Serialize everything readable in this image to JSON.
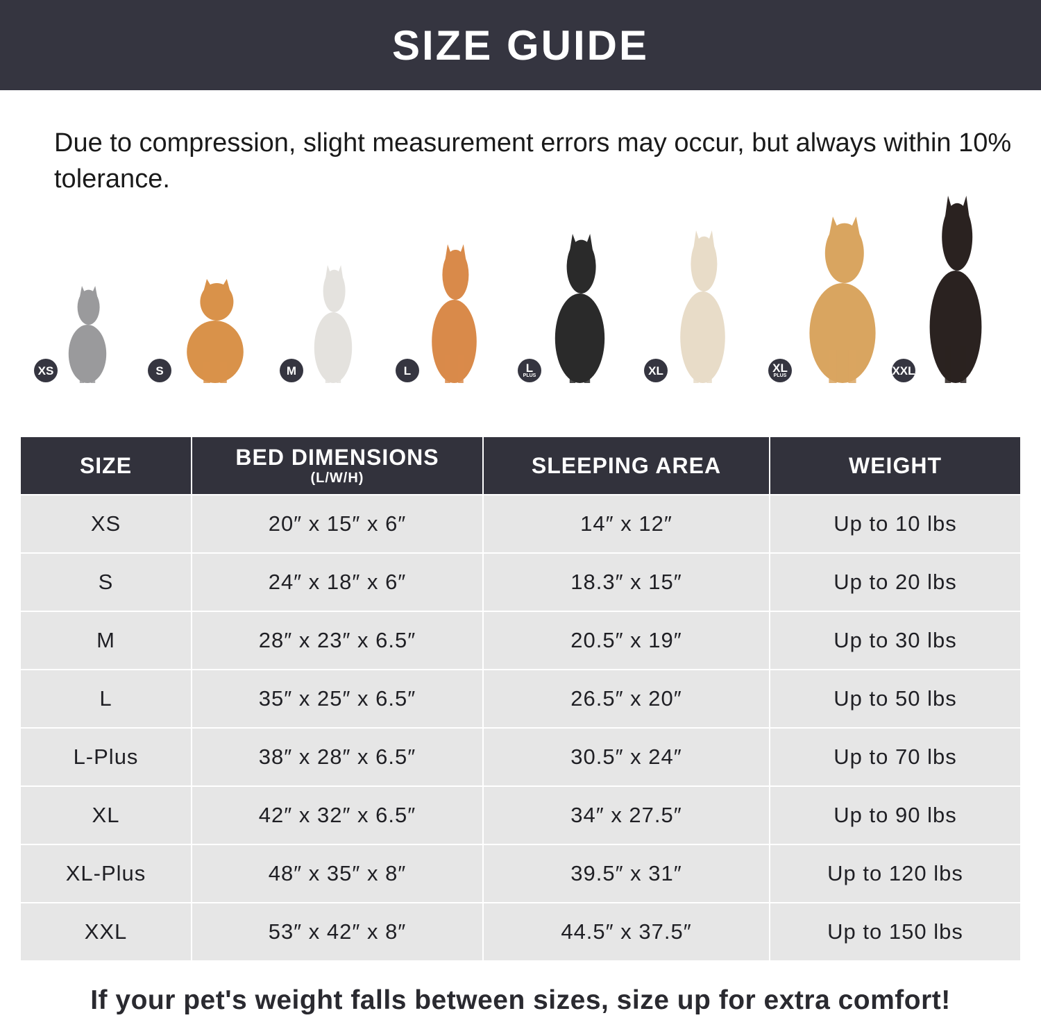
{
  "header": {
    "title": "SIZE GUIDE"
  },
  "note": "Due to compression, slight measurement errors may occur, but always within 10% tolerance.",
  "pets": [
    {
      "badge": "XS",
      "badge_sub": "",
      "animal": "cat-icon",
      "color": "#9a9a9c"
    },
    {
      "badge": "S",
      "badge_sub": "",
      "animal": "pomeranian-icon",
      "color": "#d9924a"
    },
    {
      "badge": "M",
      "badge_sub": "",
      "animal": "french-bulldog-icon",
      "color": "#e4e2de"
    },
    {
      "badge": "L",
      "badge_sub": "",
      "animal": "shiba-inu-icon",
      "color": "#d98a4a"
    },
    {
      "badge": "L",
      "badge_sub": "PLUS",
      "animal": "border-collie-icon",
      "color": "#2a2a2a"
    },
    {
      "badge": "XL",
      "badge_sub": "",
      "animal": "labrador-icon",
      "color": "#e8dcc8"
    },
    {
      "badge": "XL",
      "badge_sub": "PLUS",
      "animal": "golden-retriever-icon",
      "color": "#d9a560"
    },
    {
      "badge": "XXL",
      "badge_sub": "",
      "animal": "doberman-icon",
      "color": "#2a2220"
    }
  ],
  "table": {
    "headers": [
      {
        "label": "SIZE",
        "sub": ""
      },
      {
        "label": "BED DIMENSIONS",
        "sub": "(L/W/H)"
      },
      {
        "label": "SLEEPING AREA",
        "sub": ""
      },
      {
        "label": "WEIGHT",
        "sub": ""
      }
    ],
    "rows": [
      [
        "XS",
        "20″ x 15″ x 6″",
        "14″ x 12″",
        "Up to 10 lbs"
      ],
      [
        "S",
        "24″ x 18″ x 6″",
        "18.3″ x 15″",
        "Up to 20 lbs"
      ],
      [
        "M",
        "28″ x 23″ x 6.5″",
        "20.5″ x 19″",
        "Up to 30 lbs"
      ],
      [
        "L",
        "35″ x 25″ x 6.5″",
        "26.5″ x 20″",
        "Up to 50 lbs"
      ],
      [
        "L-Plus",
        "38″ x 28″ x 6.5″",
        "30.5″ x 24″",
        "Up to 70 lbs"
      ],
      [
        "XL",
        "42″ x 32″ x 6.5″",
        "34″ x 27.5″",
        "Up to 90 lbs"
      ],
      [
        "XL-Plus",
        "48″ x 35″ x 8″",
        "39.5″ x 31″",
        "Up to 120 lbs"
      ],
      [
        "XXL",
        "53″ x 42″ x 8″",
        "44.5″ x 37.5″",
        "Up to 150 lbs"
      ]
    ]
  },
  "footer": "If your pet's weight falls between sizes, size up for extra comfort!",
  "colors": {
    "header_bg": "#353540",
    "row_bg": "#e6e6e6"
  }
}
